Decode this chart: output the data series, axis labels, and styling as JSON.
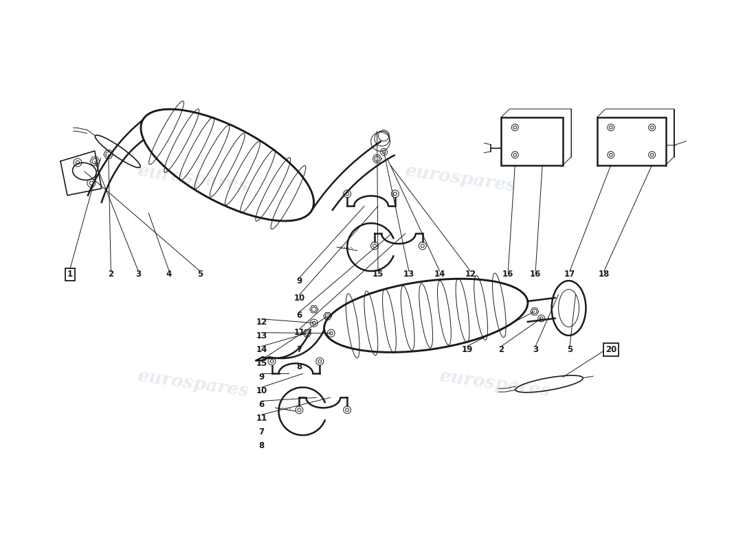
{
  "background_color": "#ffffff",
  "watermark_text": "eurospares",
  "watermark_color": "#b8c8d8",
  "watermark_alpha": 0.35,
  "line_color": "#1a1a1a",
  "label_color": "#1a1a1a",
  "fig_width": 11.0,
  "fig_height": 8.0,
  "dpi": 100
}
